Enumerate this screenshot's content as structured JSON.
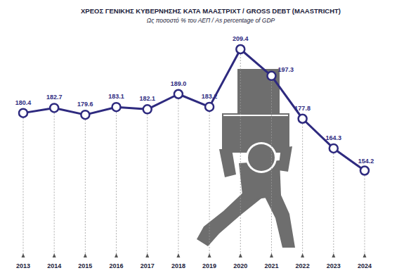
{
  "chart_data": {
    "type": "line",
    "title": "ΧΡΕΟΣ ΓΕΝΙΚΗΣ ΚΥΒΕΡΝΗΣΗΣ ΚΑΤΑ ΜΑΑΣΤΡΙΧΤ / GROSS DEBT (MAASTRICHT)",
    "subtitle": "Ως ποσοστό % του ΑΕΠ / As percentage of GDP",
    "categories": [
      "2013",
      "2014",
      "2015",
      "2016",
      "2017",
      "2018",
      "2019",
      "2020",
      "2021",
      "2022",
      "2023",
      "2024"
    ],
    "values": [
      180.4,
      182.7,
      179.6,
      183.1,
      182.1,
      189.0,
      183.2,
      209.4,
      197.3,
      177.8,
      164.3,
      154.2
    ],
    "value_labels": [
      "180.4",
      "182.7",
      "179.6",
      "183.1",
      "182.1",
      "189.0",
      "183.2",
      "209.4",
      "197.3",
      "177.8",
      "164.3",
      "154.2"
    ],
    "color": "#2e2a7f",
    "marker": "circle",
    "ylim": [
      115,
      215
    ],
    "data_labels": true,
    "tick_labels": "x",
    "grid": false
  }
}
